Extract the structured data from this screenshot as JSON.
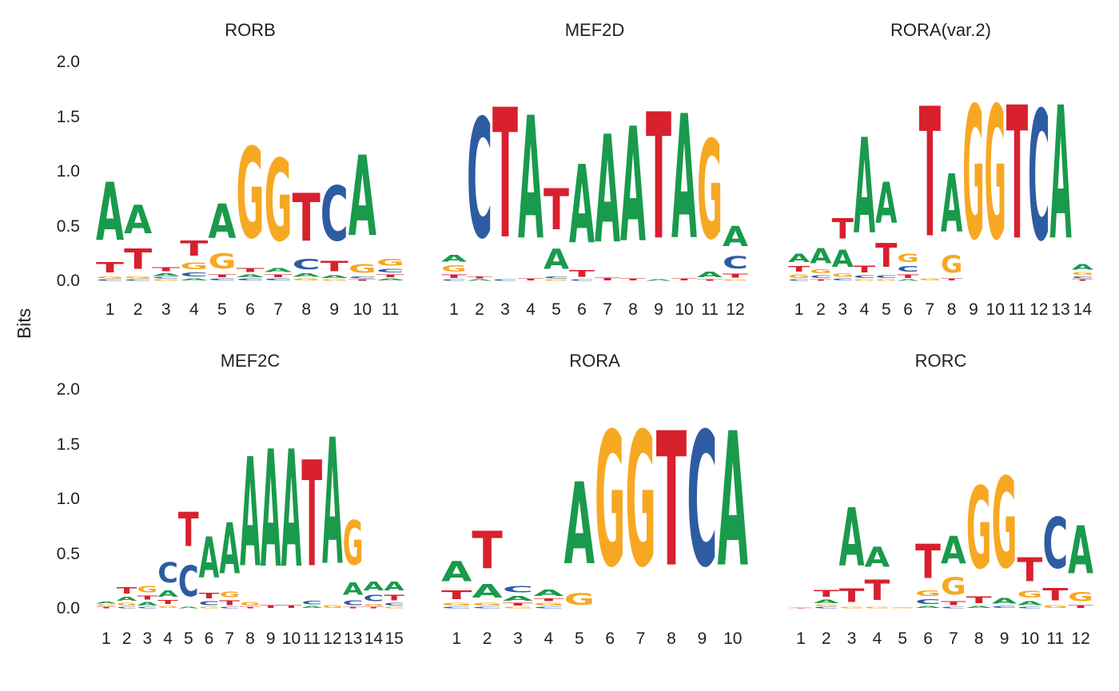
{
  "ylabel": "Bits",
  "chart_data": {
    "type": "sequence-logo-grid",
    "description": "Six DNA sequence motif logos (information content in bits per position)",
    "ylabel": "Bits",
    "ylim": [
      0,
      2.0
    ],
    "yticks": [
      "2.0",
      "1.5",
      "1.0",
      "0.5",
      "0.0"
    ],
    "grid": "off",
    "base_colors": {
      "A": "#1A9A4C",
      "C": "#2D5CA2",
      "G": "#F7A823",
      "T": "#D8202E"
    },
    "panels": [
      {
        "title": "RORB",
        "row": 0,
        "col": 0,
        "positions": [
          1,
          2,
          3,
          4,
          5,
          6,
          7,
          8,
          9,
          10,
          11
        ],
        "stacks": [
          [
            [
              "A",
              0.85
            ],
            [
              "T",
              0.15
            ],
            [
              "G",
              0.03
            ],
            [
              "C",
              0.02
            ]
          ],
          [
            [
              "A",
              0.42
            ],
            [
              "T",
              0.3
            ],
            [
              "G",
              0.03
            ],
            [
              "C",
              0.02
            ]
          ],
          [
            [
              "T",
              0.06
            ],
            [
              "A",
              0.04
            ],
            [
              "C",
              0.02
            ],
            [
              "G",
              0.02
            ]
          ],
          [
            [
              "T",
              0.22
            ],
            [
              "G",
              0.1
            ],
            [
              "C",
              0.06
            ],
            [
              "A",
              0.03
            ]
          ],
          [
            [
              "A",
              0.5
            ],
            [
              "G",
              0.22
            ],
            [
              "T",
              0.04
            ],
            [
              "C",
              0.03
            ]
          ],
          [
            [
              "G",
              1.33
            ],
            [
              "T",
              0.06
            ],
            [
              "A",
              0.04
            ],
            [
              "C",
              0.03
            ]
          ],
          [
            [
              "G",
              1.2
            ],
            [
              "A",
              0.06
            ],
            [
              "T",
              0.04
            ],
            [
              "C",
              0.03
            ]
          ],
          [
            [
              "T",
              0.7
            ],
            [
              "C",
              0.15
            ],
            [
              "A",
              0.05
            ],
            [
              "G",
              0.03
            ]
          ],
          [
            [
              "C",
              0.8
            ],
            [
              "T",
              0.15
            ],
            [
              "A",
              0.04
            ],
            [
              "G",
              0.02
            ]
          ],
          [
            [
              "A",
              1.18
            ],
            [
              "G",
              0.13
            ],
            [
              "C",
              0.03
            ],
            [
              "T",
              0.02
            ]
          ],
          [
            [
              "G",
              0.1
            ],
            [
              "C",
              0.05
            ],
            [
              "T",
              0.04
            ],
            [
              "A",
              0.03
            ]
          ]
        ]
      },
      {
        "title": "MEF2D",
        "row": 0,
        "col": 1,
        "positions": [
          1,
          2,
          3,
          4,
          5,
          6,
          7,
          8,
          9,
          10,
          11,
          12
        ],
        "stacks": [
          [
            [
              "A",
              0.1
            ],
            [
              "G",
              0.09
            ],
            [
              "T",
              0.05
            ],
            [
              "C",
              0.02
            ]
          ],
          [
            [
              "C",
              1.75
            ],
            [
              "T",
              0.03
            ],
            [
              "A",
              0.02
            ]
          ],
          [
            [
              "T",
              1.9
            ],
            [
              "C",
              0.02
            ]
          ],
          [
            [
              "A",
              1.8
            ],
            [
              "T",
              0.03
            ]
          ],
          [
            [
              "T",
              0.6
            ],
            [
              "A",
              0.3
            ],
            [
              "C",
              0.03
            ],
            [
              "G",
              0.02
            ]
          ],
          [
            [
              "A",
              1.15
            ],
            [
              "T",
              0.1
            ],
            [
              "C",
              0.02
            ]
          ],
          [
            [
              "A",
              1.58
            ],
            [
              "T",
              0.04
            ]
          ],
          [
            [
              "A",
              1.68
            ],
            [
              "T",
              0.03
            ]
          ],
          [
            [
              "T",
              1.85
            ],
            [
              "A",
              0.02
            ]
          ],
          [
            [
              "A",
              1.82
            ],
            [
              "T",
              0.03
            ]
          ],
          [
            [
              "G",
              1.45
            ],
            [
              "A",
              0.08
            ],
            [
              "T",
              0.02
            ]
          ],
          [
            [
              "A",
              0.3
            ],
            [
              "C",
              0.18
            ],
            [
              "T",
              0.06
            ],
            [
              "G",
              0.02
            ]
          ]
        ]
      },
      {
        "title": "RORA(var.2)",
        "row": 0,
        "col": 2,
        "positions": [
          1,
          2,
          3,
          4,
          5,
          6,
          7,
          8,
          9,
          10,
          11,
          12,
          13,
          14
        ],
        "stacks": [
          [
            [
              "A",
              0.12
            ],
            [
              "T",
              0.08
            ],
            [
              "G",
              0.05
            ],
            [
              "C",
              0.02
            ]
          ],
          [
            [
              "A",
              0.22
            ],
            [
              "G",
              0.06
            ],
            [
              "C",
              0.04
            ],
            [
              "T",
              0.02
            ]
          ],
          [
            [
              "T",
              0.3
            ],
            [
              "A",
              0.25
            ],
            [
              "G",
              0.05
            ],
            [
              "C",
              0.03
            ]
          ],
          [
            [
              "A",
              1.4
            ],
            [
              "T",
              0.1
            ],
            [
              "C",
              0.04
            ],
            [
              "G",
              0.02
            ]
          ],
          [
            [
              "A",
              0.6
            ],
            [
              "T",
              0.35
            ],
            [
              "C",
              0.04
            ],
            [
              "G",
              0.02
            ]
          ],
          [
            [
              "G",
              0.12
            ],
            [
              "C",
              0.08
            ],
            [
              "T",
              0.05
            ],
            [
              "A",
              0.02
            ]
          ],
          [
            [
              "T",
              1.9
            ],
            [
              "G",
              0.03
            ]
          ],
          [
            [
              "A",
              0.85
            ],
            [
              "G",
              0.25
            ],
            [
              "T",
              0.03
            ]
          ],
          [
            [
              "G",
              1.95
            ]
          ],
          [
            [
              "G",
              1.95
            ]
          ],
          [
            [
              "T",
              1.95
            ]
          ],
          [
            [
              "C",
              1.9
            ]
          ],
          [
            [
              "A",
              1.95
            ]
          ],
          [
            [
              "A",
              0.08
            ],
            [
              "G",
              0.04
            ],
            [
              "C",
              0.03
            ],
            [
              "T",
              0.02
            ]
          ]
        ]
      },
      {
        "title": "MEF2C",
        "row": 1,
        "col": 0,
        "positions": [
          1,
          2,
          3,
          4,
          5,
          6,
          7,
          8,
          9,
          10,
          11,
          12,
          13,
          14,
          15
        ],
        "stacks": [
          [
            [
              "A",
              0.03
            ],
            [
              "G",
              0.02
            ],
            [
              "T",
              0.02
            ]
          ],
          [
            [
              "T",
              0.09
            ],
            [
              "A",
              0.06
            ],
            [
              "G",
              0.04
            ],
            [
              "C",
              0.02
            ]
          ],
          [
            [
              "G",
              0.09
            ],
            [
              "T",
              0.06
            ],
            [
              "A",
              0.05
            ],
            [
              "C",
              0.02
            ]
          ],
          [
            [
              "C",
              0.3
            ],
            [
              "A",
              0.09
            ],
            [
              "T",
              0.06
            ],
            [
              "G",
              0.03
            ]
          ],
          [
            [
              "T",
              0.5
            ],
            [
              "C",
              0.45
            ],
            [
              "A",
              0.02
            ]
          ],
          [
            [
              "A",
              0.6
            ],
            [
              "T",
              0.08
            ],
            [
              "C",
              0.06
            ],
            [
              "G",
              0.02
            ]
          ],
          [
            [
              "A",
              0.75
            ],
            [
              "G",
              0.08
            ],
            [
              "T",
              0.07
            ],
            [
              "C",
              0.02
            ]
          ],
          [
            [
              "A",
              1.6
            ],
            [
              "G",
              0.05
            ],
            [
              "T",
              0.02
            ]
          ],
          [
            [
              "A",
              1.72
            ],
            [
              "T",
              0.04
            ]
          ],
          [
            [
              "A",
              1.72
            ],
            [
              "T",
              0.04
            ]
          ],
          [
            [
              "T",
              1.55
            ],
            [
              "C",
              0.05
            ],
            [
              "A",
              0.03
            ]
          ],
          [
            [
              "A",
              1.85
            ],
            [
              "G",
              0.04
            ]
          ],
          [
            [
              "G",
              0.65
            ],
            [
              "A",
              0.18
            ],
            [
              "C",
              0.07
            ],
            [
              "T",
              0.02
            ]
          ],
          [
            [
              "A",
              0.13
            ],
            [
              "C",
              0.09
            ],
            [
              "G",
              0.03
            ],
            [
              "T",
              0.02
            ]
          ],
          [
            [
              "A",
              0.13
            ],
            [
              "T",
              0.08
            ],
            [
              "C",
              0.04
            ],
            [
              "G",
              0.02
            ]
          ]
        ]
      },
      {
        "title": "RORA",
        "row": 1,
        "col": 1,
        "positions": [
          1,
          2,
          3,
          4,
          5,
          6,
          7,
          8,
          9,
          10
        ],
        "stacks": [
          [
            [
              "A",
              0.3
            ],
            [
              "T",
              0.13
            ],
            [
              "G",
              0.04
            ],
            [
              "C",
              0.02
            ]
          ],
          [
            [
              "T",
              0.55
            ],
            [
              "A",
              0.2
            ],
            [
              "G",
              0.04
            ],
            [
              "C",
              0.02
            ]
          ],
          [
            [
              "C",
              0.09
            ],
            [
              "A",
              0.07
            ],
            [
              "T",
              0.04
            ],
            [
              "G",
              0.02
            ]
          ],
          [
            [
              "A",
              0.09
            ],
            [
              "T",
              0.04
            ],
            [
              "G",
              0.04
            ],
            [
              "C",
              0.02
            ]
          ],
          [
            [
              "A",
              1.2
            ],
            [
              "G",
              0.17
            ]
          ],
          [
            [
              "G",
              1.97
            ]
          ],
          [
            [
              "G",
              1.97
            ]
          ],
          [
            [
              "T",
              1.97
            ]
          ],
          [
            [
              "C",
              1.97
            ]
          ],
          [
            [
              "A",
              1.97
            ]
          ]
        ]
      },
      {
        "title": "RORC",
        "row": 1,
        "col": 2,
        "positions": [
          1,
          2,
          3,
          4,
          5,
          6,
          7,
          8,
          9,
          10,
          11,
          12
        ],
        "stacks": [
          [
            [
              "A",
              0.01
            ],
            [
              "T",
              0.01
            ]
          ],
          [
            [
              "T",
              0.1
            ],
            [
              "A",
              0.05
            ],
            [
              "G",
              0.02
            ],
            [
              "C",
              0.02
            ]
          ],
          [
            [
              "A",
              0.85
            ],
            [
              "T",
              0.2
            ],
            [
              "G",
              0.02
            ]
          ],
          [
            [
              "A",
              0.3
            ],
            [
              "T",
              0.3
            ],
            [
              "G",
              0.02
            ]
          ],
          [
            [
              "A",
              0.01
            ],
            [
              "G",
              0.01
            ]
          ],
          [
            [
              "T",
              0.5
            ],
            [
              "G",
              0.08
            ],
            [
              "C",
              0.07
            ],
            [
              "A",
              0.03
            ]
          ],
          [
            [
              "A",
              0.4
            ],
            [
              "G",
              0.25
            ],
            [
              "T",
              0.06
            ],
            [
              "C",
              0.02
            ]
          ],
          [
            [
              "G",
              1.2
            ],
            [
              "T",
              0.1
            ],
            [
              "A",
              0.03
            ]
          ],
          [
            [
              "G",
              1.33
            ],
            [
              "A",
              0.08
            ],
            [
              "C",
              0.03
            ]
          ],
          [
            [
              "T",
              0.35
            ],
            [
              "G",
              0.1
            ],
            [
              "A",
              0.06
            ],
            [
              "C",
              0.02
            ]
          ],
          [
            [
              "C",
              0.75
            ],
            [
              "T",
              0.18
            ],
            [
              "G",
              0.04
            ]
          ],
          [
            [
              "A",
              0.7
            ],
            [
              "G",
              0.14
            ],
            [
              "T",
              0.04
            ]
          ]
        ]
      }
    ]
  }
}
